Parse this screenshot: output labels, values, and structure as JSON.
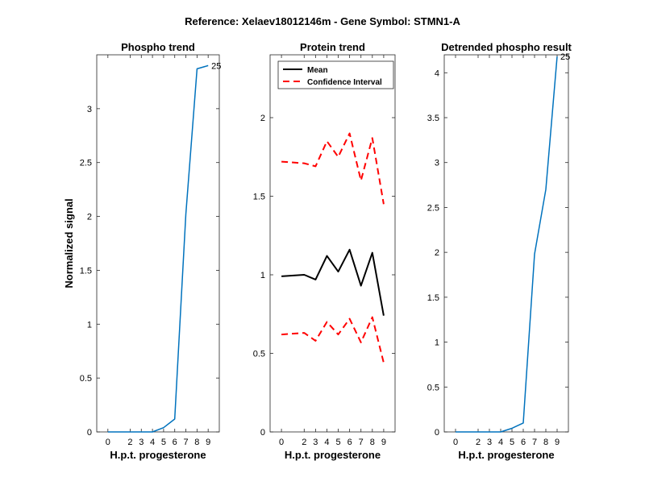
{
  "figure_title": "Reference:  Xelaev18012146m - Gene Symbol:  STMN1-A",
  "colors": {
    "phospho": "#0072bd",
    "mean": "#000000",
    "ci": "#ff0000"
  },
  "chart_data": [
    {
      "type": "line",
      "title": "Phospho trend",
      "xlabel": "H.p.t. progesterone",
      "ylabel": "Normalized signal",
      "x": [
        0,
        2,
        3,
        4,
        5,
        6,
        7,
        8,
        9
      ],
      "xticks": [
        "0",
        "2",
        "3",
        "4",
        "5",
        "6",
        "7",
        "8",
        "9"
      ],
      "xlim": [
        -1,
        10
      ],
      "ylim": [
        0,
        3.5
      ],
      "yticks": [
        "0",
        "0.5",
        "1",
        "1.5",
        "2",
        "2.5",
        "3"
      ],
      "series": [
        {
          "values": [
            0,
            0,
            0,
            0,
            0.04,
            0.12,
            2.02,
            3.37,
            3.4
          ],
          "color_key": "phospho",
          "dashed": false
        }
      ],
      "end_label": "25",
      "grid": false
    },
    {
      "type": "line",
      "title": "Protein trend",
      "xlabel": "H.p.t. progesterone",
      "ylabel": "",
      "x": [
        0,
        2,
        3,
        4,
        5,
        6,
        7,
        8,
        9
      ],
      "xticks": [
        "0",
        "2",
        "3",
        "4",
        "5",
        "6",
        "7",
        "8",
        "9"
      ],
      "xlim": [
        -1,
        10
      ],
      "ylim": [
        0,
        2.4
      ],
      "yticks": [
        "0",
        "0.5",
        "1",
        "1.5",
        "2"
      ],
      "series": [
        {
          "name": "Mean",
          "values": [
            0.99,
            1.0,
            0.97,
            1.12,
            1.02,
            1.16,
            0.93,
            1.14,
            0.74
          ],
          "color_key": "mean",
          "dashed": false
        },
        {
          "name": "Confidence Interval",
          "values": [
            1.72,
            1.71,
            1.69,
            1.85,
            1.75,
            1.9,
            1.6,
            1.87,
            1.45
          ],
          "color_key": "ci",
          "dashed": true
        },
        {
          "values": [
            0.62,
            0.63,
            0.58,
            0.7,
            0.62,
            0.72,
            0.57,
            0.73,
            0.44
          ],
          "color_key": "ci",
          "dashed": true
        }
      ],
      "legend": [
        "Mean",
        "Confidence Interval"
      ],
      "legend_position": "top-left",
      "grid": false
    },
    {
      "type": "line",
      "title": "Detrended phospho result",
      "xlabel": "H.p.t. progesterone",
      "ylabel": "",
      "x": [
        0,
        2,
        3,
        4,
        5,
        6,
        7,
        8,
        9
      ],
      "xticks": [
        "0",
        "2",
        "3",
        "4",
        "5",
        "6",
        "7",
        "8",
        "9"
      ],
      "xlim": [
        -1,
        10
      ],
      "ylim": [
        0,
        4.2
      ],
      "yticks": [
        "0",
        "0.5",
        "1",
        "1.5",
        "2",
        "2.5",
        "3",
        "3.5",
        "4"
      ],
      "series": [
        {
          "values": [
            0,
            0,
            0,
            0,
            0.04,
            0.1,
            1.98,
            2.7,
            4.18
          ],
          "color_key": "phospho",
          "dashed": false
        }
      ],
      "end_label": "25",
      "grid": false
    }
  ]
}
